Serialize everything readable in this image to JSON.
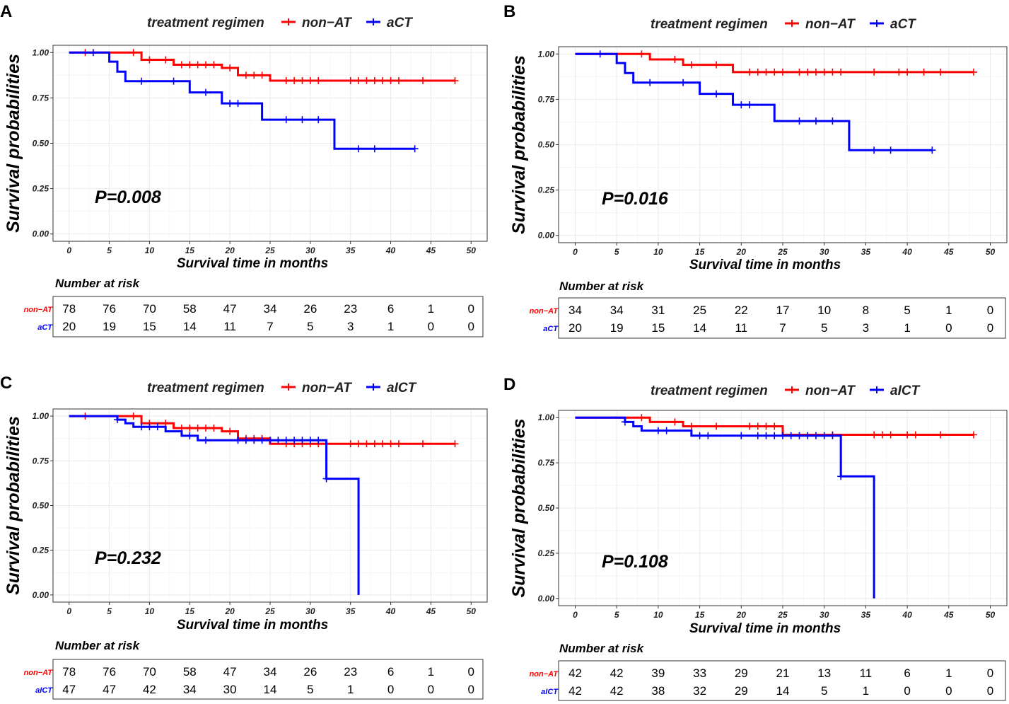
{
  "figure": {
    "colors": {
      "group1": "#ff0000",
      "group2": "#0000ff",
      "grid": "#ebebeb",
      "frame": "#333333"
    }
  },
  "chart_data": [
    {
      "panel": "A",
      "type": "line",
      "subtype": "kaplan-meier",
      "legend_title": "treatment regimen",
      "xlabel": "Survival time in months",
      "ylabel": "Survival probabilities",
      "xlim": [
        -2,
        52
      ],
      "ylim": [
        -0.04,
        1.04
      ],
      "x_ticks": [
        "0",
        "5",
        "10",
        "15",
        "20",
        "25",
        "30",
        "35",
        "40",
        "45",
        "50"
      ],
      "y_ticks": [
        "0.00",
        "0.25",
        "0.50",
        "0.75",
        "1.00"
      ],
      "p_value": "P=0.008",
      "series": [
        {
          "name": "non−AT",
          "color": "#ff0000",
          "steps": [
            [
              0,
              1.0
            ],
            [
              9,
              0.96
            ],
            [
              13,
              0.933
            ],
            [
              19,
              0.915
            ],
            [
              21,
              0.875
            ],
            [
              25,
              0.845
            ],
            [
              48,
              0.845
            ]
          ],
          "censored": [
            2,
            8,
            10,
            12,
            14,
            15,
            16,
            17,
            18,
            20,
            22,
            23,
            24,
            27,
            28,
            29,
            30,
            31,
            35,
            36,
            37,
            38,
            39,
            40,
            41,
            44,
            48
          ]
        },
        {
          "name": "aCT",
          "color": "#0000ff",
          "steps": [
            [
              0,
              1.0
            ],
            [
              5,
              0.95
            ],
            [
              6,
              0.895
            ],
            [
              7,
              0.842
            ],
            [
              15,
              0.78
            ],
            [
              19,
              0.72
            ],
            [
              24,
              0.63
            ],
            [
              33,
              0.47
            ],
            [
              43,
              0.47
            ]
          ],
          "censored": [
            3,
            9,
            13,
            17,
            20,
            21,
            27,
            29,
            31,
            36,
            38,
            43
          ]
        }
      ],
      "risk_table": {
        "title": "Number at risk",
        "rows": [
          {
            "label": "non−AT",
            "color": "#ff0000",
            "values": [
              "78",
              "76",
              "70",
              "58",
              "47",
              "34",
              "26",
              "23",
              "6",
              "1",
              "0"
            ]
          },
          {
            "label": "aCT",
            "color": "#0000ff",
            "values": [
              "20",
              "19",
              "15",
              "14",
              "11",
              "7",
              "5",
              "3",
              "1",
              "0",
              "0"
            ]
          }
        ]
      }
    },
    {
      "panel": "B",
      "type": "line",
      "subtype": "kaplan-meier",
      "legend_title": "treatment regimen",
      "xlabel": "Survival time in months",
      "ylabel": "Survival probabilities",
      "xlim": [
        -2,
        52
      ],
      "ylim": [
        -0.04,
        1.04
      ],
      "x_ticks": [
        "0",
        "5",
        "10",
        "15",
        "20",
        "25",
        "30",
        "35",
        "40",
        "45",
        "50"
      ],
      "y_ticks": [
        "0.00",
        "0.25",
        "0.50",
        "0.75",
        "1.00"
      ],
      "p_value": "P=0.016",
      "series": [
        {
          "name": "non−AT",
          "color": "#ff0000",
          "steps": [
            [
              0,
              1.0
            ],
            [
              9,
              0.97
            ],
            [
              13,
              0.94
            ],
            [
              19,
              0.9
            ],
            [
              48,
              0.9
            ]
          ],
          "censored": [
            8,
            12,
            14,
            17,
            21,
            22,
            23,
            24,
            25,
            27,
            28,
            29,
            30,
            31,
            32,
            36,
            39,
            40,
            42,
            44,
            48
          ]
        },
        {
          "name": "aCT",
          "color": "#0000ff",
          "steps": [
            [
              0,
              1.0
            ],
            [
              5,
              0.95
            ],
            [
              6,
              0.895
            ],
            [
              7,
              0.842
            ],
            [
              15,
              0.78
            ],
            [
              19,
              0.72
            ],
            [
              24,
              0.63
            ],
            [
              33,
              0.47
            ],
            [
              43,
              0.47
            ]
          ],
          "censored": [
            3,
            9,
            13,
            17,
            20,
            21,
            27,
            29,
            31,
            36,
            38,
            43
          ]
        }
      ],
      "risk_table": {
        "title": "Number at risk",
        "rows": [
          {
            "label": "non−AT",
            "color": "#ff0000",
            "values": [
              "34",
              "34",
              "31",
              "25",
              "22",
              "17",
              "10",
              "8",
              "5",
              "1",
              "0"
            ]
          },
          {
            "label": "aCT",
            "color": "#0000ff",
            "values": [
              "20",
              "19",
              "15",
              "14",
              "11",
              "7",
              "5",
              "3",
              "1",
              "0",
              "0"
            ]
          }
        ]
      }
    },
    {
      "panel": "C",
      "type": "line",
      "subtype": "kaplan-meier",
      "legend_title": "treatment regimen",
      "xlabel": "Survival time in months",
      "ylabel": "Survival probabilities",
      "xlim": [
        -2,
        52
      ],
      "ylim": [
        -0.04,
        1.04
      ],
      "x_ticks": [
        "0",
        "5",
        "10",
        "15",
        "20",
        "25",
        "30",
        "35",
        "40",
        "45",
        "50"
      ],
      "y_ticks": [
        "0.00",
        "0.25",
        "0.50",
        "0.75",
        "1.00"
      ],
      "p_value": "P=0.232",
      "series": [
        {
          "name": "non−AT",
          "color": "#ff0000",
          "steps": [
            [
              0,
              1.0
            ],
            [
              9,
              0.96
            ],
            [
              13,
              0.933
            ],
            [
              19,
              0.915
            ],
            [
              21,
              0.875
            ],
            [
              25,
              0.845
            ],
            [
              48,
              0.845
            ]
          ],
          "censored": [
            2,
            8,
            10,
            12,
            14,
            15,
            16,
            17,
            18,
            20,
            22,
            23,
            24,
            27,
            28,
            29,
            30,
            31,
            35,
            36,
            37,
            38,
            39,
            40,
            41,
            44,
            48
          ]
        },
        {
          "name": "aICT",
          "color": "#0000ff",
          "steps": [
            [
              0,
              1.0
            ],
            [
              6,
              0.98
            ],
            [
              7,
              0.96
            ],
            [
              8,
              0.94
            ],
            [
              12,
              0.915
            ],
            [
              14,
              0.89
            ],
            [
              16,
              0.865
            ],
            [
              32,
              0.65
            ],
            [
              36,
              0.0
            ]
          ],
          "censored": [
            6,
            9,
            10,
            11,
            15,
            17,
            21,
            22,
            23,
            24,
            25,
            26,
            27,
            28,
            29,
            30,
            31,
            32
          ]
        }
      ],
      "risk_table": {
        "title": "Number at risk",
        "rows": [
          {
            "label": "non−AT",
            "color": "#ff0000",
            "values": [
              "78",
              "76",
              "70",
              "58",
              "47",
              "34",
              "26",
              "23",
              "6",
              "1",
              "0"
            ]
          },
          {
            "label": "aICT",
            "color": "#0000ff",
            "values": [
              "47",
              "47",
              "42",
              "34",
              "30",
              "14",
              "5",
              "1",
              "0",
              "0",
              "0"
            ]
          }
        ]
      }
    },
    {
      "panel": "D",
      "type": "line",
      "subtype": "kaplan-meier",
      "legend_title": "treatment regimen",
      "xlabel": "Survival time in months",
      "ylabel": "Survival probabilities",
      "xlim": [
        -2,
        52
      ],
      "ylim": [
        -0.04,
        1.04
      ],
      "x_ticks": [
        "0",
        "5",
        "10",
        "15",
        "20",
        "25",
        "30",
        "35",
        "40",
        "45",
        "50"
      ],
      "y_ticks": [
        "0.00",
        "0.25",
        "0.50",
        "0.75",
        "1.00"
      ],
      "p_value": "P=0.108",
      "series": [
        {
          "name": "non−AT",
          "color": "#ff0000",
          "steps": [
            [
              0,
              1.0
            ],
            [
              9,
              0.976
            ],
            [
              13,
              0.952
            ],
            [
              25,
              0.905
            ],
            [
              48,
              0.905
            ]
          ],
          "censored": [
            8,
            12,
            14,
            17,
            21,
            22,
            23,
            24,
            31,
            36,
            37,
            38,
            40,
            41,
            44,
            48
          ]
        },
        {
          "name": "aICT",
          "color": "#0000ff",
          "steps": [
            [
              0,
              1.0
            ],
            [
              6,
              0.976
            ],
            [
              7,
              0.952
            ],
            [
              8,
              0.928
            ],
            [
              14,
              0.9
            ],
            [
              32,
              0.675
            ],
            [
              36,
              0.0
            ]
          ],
          "censored": [
            6,
            10,
            11,
            15,
            16,
            20,
            22,
            23,
            24,
            25,
            26,
            27,
            28,
            29,
            30,
            31,
            32
          ]
        }
      ],
      "risk_table": {
        "title": "Number at risk",
        "rows": [
          {
            "label": "non−AT",
            "color": "#ff0000",
            "values": [
              "42",
              "42",
              "39",
              "33",
              "29",
              "21",
              "13",
              "11",
              "6",
              "1",
              "0"
            ]
          },
          {
            "label": "aICT",
            "color": "#0000ff",
            "values": [
              "42",
              "42",
              "38",
              "32",
              "29",
              "14",
              "5",
              "1",
              "0",
              "0",
              "0"
            ]
          }
        ]
      }
    }
  ]
}
